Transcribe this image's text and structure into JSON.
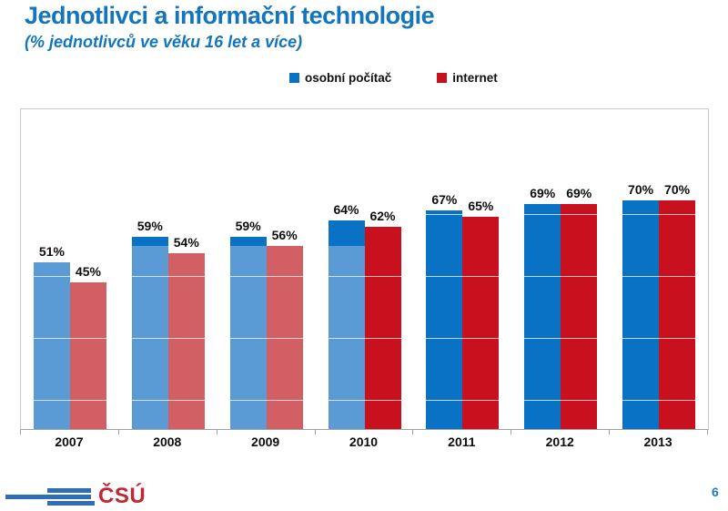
{
  "slide": {
    "title": "Jednotlivci a informační technologie",
    "subtitle": "(% jednotlivců ve věku 16 let a více)",
    "page_number": "6"
  },
  "logo": {
    "text": "ČSÚ",
    "stripes_color": "#2f6eb6",
    "text_color": "#c22533"
  },
  "colors": {
    "title_blue": "#1375bd",
    "page_number_blue": "#1e7bc4",
    "pc_dark": "#0a72c5",
    "pc_light": "#5a9bd5",
    "net_dark": "#c8101e",
    "net_light": "#d15f63",
    "frame_border": "#c9c9c9",
    "axis_line": "#a0a0a0",
    "label_black": "#0d0d0d"
  },
  "legend": {
    "items": [
      {
        "label": "osobní počítač",
        "series": "pc"
      },
      {
        "label": "internet",
        "series": "net"
      }
    ]
  },
  "chart_data": {
    "type": "bar",
    "title": "Jednotlivci a informační technologie",
    "subtitle": "(% jednotlivců ve věku 16 let a více)",
    "categories": [
      "2007",
      "2008",
      "2009",
      "2010",
      "2011",
      "2012",
      "2013"
    ],
    "series": [
      {
        "name": "osobní počítač",
        "values": [
          51,
          59,
          59,
          64,
          67,
          69,
          70
        ]
      },
      {
        "name": "internet",
        "values": [
          45,
          54,
          56,
          62,
          65,
          69,
          70
        ]
      }
    ],
    "value_label_format": "{v}%",
    "bar_styles": [
      {
        "year": "2007",
        "pc": "light",
        "pc_dark_cap_from": null,
        "net": "light"
      },
      {
        "year": "2008",
        "pc": "light",
        "pc_dark_cap_from": 56,
        "net": "light"
      },
      {
        "year": "2009",
        "pc": "light",
        "pc_dark_cap_from": 56,
        "net": "light"
      },
      {
        "year": "2010",
        "pc": "light",
        "pc_dark_cap_from": 56,
        "net": "dark"
      },
      {
        "year": "2011",
        "pc": "dark",
        "pc_dark_cap_from": null,
        "net": "dark"
      },
      {
        "year": "2012",
        "pc": "dark",
        "pc_dark_cap_from": null,
        "net": "dark"
      },
      {
        "year": "2013",
        "pc": "dark",
        "pc_dark_cap_from": null,
        "net": "dark"
      }
    ],
    "ylim": [
      0,
      98
    ],
    "gridlines_y_values": [
      9,
      28,
      47,
      66
    ],
    "grid": "faint white horizontal lines drawn over bars",
    "legend_position": "top-center",
    "xlabel": "",
    "ylabel": ""
  }
}
